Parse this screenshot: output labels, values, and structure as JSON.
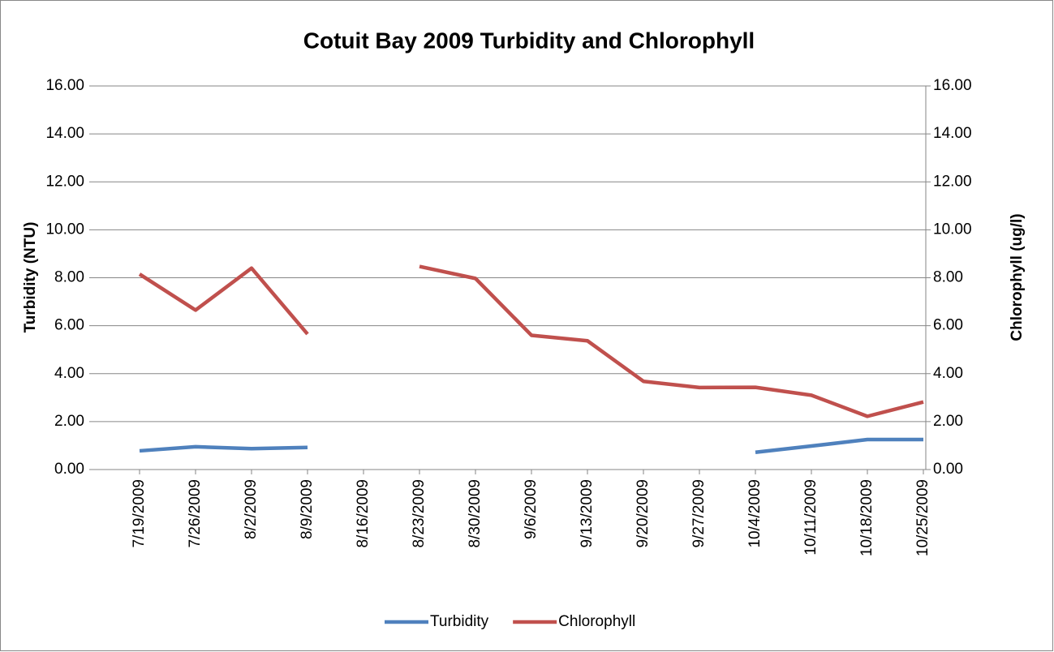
{
  "chart_data": {
    "type": "line",
    "title": "Cotuit Bay 2009 Turbidity and Chlorophyll",
    "y_label": "Turbidity (NTU)",
    "y2_label": "Chlorophyll (ug/l)",
    "categories": [
      "7/19/2009",
      "7/26/2009",
      "8/2/2009",
      "8/9/2009",
      "8/16/2009",
      "8/23/2009",
      "8/30/2009",
      "9/6/2009",
      "9/13/2009",
      "9/20/2009",
      "9/27/2009",
      "10/4/2009",
      "10/11/2009",
      "10/18/2009",
      "10/25/2009"
    ],
    "series": [
      {
        "name": "Turbidity",
        "color": "#4f81bd",
        "values": [
          0.78,
          0.95,
          0.87,
          0.92,
          null,
          null,
          null,
          null,
          null,
          null,
          null,
          0.72,
          0.98,
          1.25,
          1.25
        ]
      },
      {
        "name": "Chlorophyll",
        "color": "#c0504d",
        "axis": "y2",
        "values": [
          8.15,
          6.65,
          8.4,
          5.65,
          null,
          8.47,
          7.97,
          5.6,
          5.37,
          3.68,
          3.42,
          3.43,
          3.1,
          2.22,
          2.82
        ]
      }
    ],
    "ylim": [
      0,
      16
    ],
    "yticks": [
      {
        "value": 0,
        "label": "0.00"
      },
      {
        "value": 2,
        "label": "2.00"
      },
      {
        "value": 4,
        "label": "4.00"
      },
      {
        "value": 6,
        "label": "6.00"
      },
      {
        "value": 8,
        "label": "8.00"
      },
      {
        "value": 10,
        "label": "10.00"
      },
      {
        "value": 12,
        "label": "12.00"
      },
      {
        "value": 14,
        "label": "14.00"
      },
      {
        "value": 16,
        "label": "16.00"
      }
    ],
    "y2lim": [
      0,
      16
    ],
    "y2ticks": [
      {
        "value": 0,
        "label": "0.00"
      },
      {
        "value": 2,
        "label": "2.00"
      },
      {
        "value": 4,
        "label": "4.00"
      },
      {
        "value": 6,
        "label": "6.00"
      },
      {
        "value": 8,
        "label": "8.00"
      },
      {
        "value": 10,
        "label": "10.00"
      },
      {
        "value": 12,
        "label": "12.00"
      },
      {
        "value": 14,
        "label": "14.00"
      },
      {
        "value": 16,
        "label": "16.00"
      }
    ],
    "grid": true,
    "legend": "bottom"
  }
}
